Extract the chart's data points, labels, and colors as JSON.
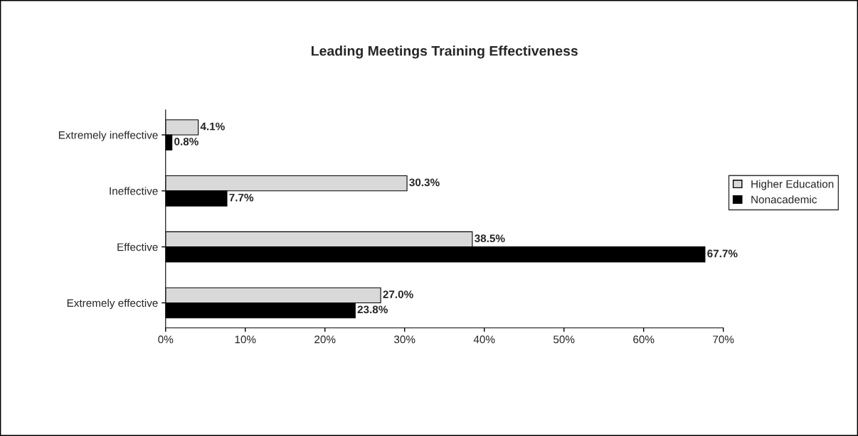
{
  "chart_data": {
    "type": "bar",
    "orientation": "horizontal",
    "title": "Leading Meetings Training Effectiveness",
    "categories": [
      "Extremely ineffective",
      "Ineffective",
      "Effective",
      "Extremely effective"
    ],
    "series": [
      {
        "name": "Higher Education",
        "color": "#d9d9d9",
        "values": [
          4.1,
          30.3,
          38.5,
          27.0
        ],
        "value_labels": [
          "4.1%",
          "30.3%",
          "38.5%",
          "27.0%"
        ]
      },
      {
        "name": "Nonacademic",
        "color": "#000000",
        "values": [
          0.8,
          7.7,
          67.7,
          23.8
        ],
        "value_labels": [
          "0.8%",
          "7.7%",
          "67.7%",
          "23.8%"
        ]
      }
    ],
    "xlim": [
      0,
      70
    ],
    "xticks": [
      {
        "value": 0,
        "label": "0%"
      },
      {
        "value": 10,
        "label": "10%"
      },
      {
        "value": 20,
        "label": "20%"
      },
      {
        "value": 30,
        "label": "30%"
      },
      {
        "value": 40,
        "label": "40%"
      },
      {
        "value": 50,
        "label": "50%"
      },
      {
        "value": 60,
        "label": "60%"
      },
      {
        "value": 70,
        "label": "70%"
      }
    ],
    "legend": "right",
    "grid": false
  }
}
